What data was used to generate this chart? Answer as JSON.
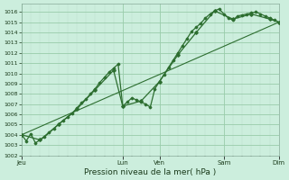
{
  "title": "Pression niveau de la mer( hPa )",
  "background_color": "#cceedd",
  "grid_color_major": "#99ccaa",
  "grid_color_minor": "#bbddcc",
  "line_color": "#2d6e30",
  "ylim": [
    1002,
    1016.8
  ],
  "yticks": [
    1002,
    1003,
    1004,
    1005,
    1006,
    1007,
    1008,
    1009,
    1010,
    1011,
    1012,
    1013,
    1014,
    1015,
    1016
  ],
  "xlim": [
    0,
    56
  ],
  "xtick_major_pos": [
    0,
    22,
    30,
    44,
    56
  ],
  "xtick_major_labels": [
    "Jeu",
    "Lun",
    "Ven",
    "Sam",
    "Dim"
  ],
  "xminor_step": 2,
  "series_detail_x": [
    0,
    1,
    2,
    3,
    4,
    5,
    6,
    7,
    8,
    9,
    10,
    11,
    12,
    13,
    14,
    15,
    16,
    17,
    18,
    19,
    20,
    21,
    22,
    23,
    24,
    25,
    26,
    27,
    28,
    29,
    30,
    31,
    32,
    33,
    34,
    35,
    36,
    37,
    38,
    39,
    40,
    41,
    42,
    43,
    44,
    45,
    46,
    47,
    48,
    49,
    50,
    51,
    52,
    53,
    54,
    55,
    56
  ],
  "series_detail_y": [
    1004.0,
    1003.4,
    1004.1,
    1003.2,
    1003.5,
    1003.8,
    1004.2,
    1004.6,
    1005.0,
    1005.4,
    1005.7,
    1006.1,
    1006.6,
    1007.1,
    1007.5,
    1008.0,
    1008.5,
    1009.1,
    1009.6,
    1010.1,
    1010.5,
    1010.9,
    1006.8,
    1007.2,
    1007.6,
    1007.4,
    1007.2,
    1007.0,
    1006.7,
    1008.5,
    1009.2,
    1009.9,
    1010.6,
    1011.3,
    1012.0,
    1012.7,
    1013.4,
    1014.1,
    1014.5,
    1014.9,
    1015.4,
    1015.8,
    1016.1,
    1016.3,
    1015.8,
    1015.4,
    1015.2,
    1015.6,
    1015.7,
    1015.8,
    1015.9,
    1016.0,
    1015.8,
    1015.6,
    1015.4,
    1015.2,
    1015.0
  ],
  "series_smooth_x": [
    0,
    4,
    8,
    12,
    16,
    20,
    22,
    26,
    30,
    34,
    38,
    42,
    46,
    50,
    54,
    56
  ],
  "series_smooth_y": [
    1004.0,
    1003.5,
    1005.0,
    1006.5,
    1008.4,
    1010.3,
    1006.8,
    1007.3,
    1009.2,
    1011.8,
    1014.0,
    1016.1,
    1015.3,
    1015.8,
    1015.3,
    1015.0
  ],
  "series_trend_x": [
    0,
    56
  ],
  "series_trend_y": [
    1004.0,
    1015.0
  ]
}
